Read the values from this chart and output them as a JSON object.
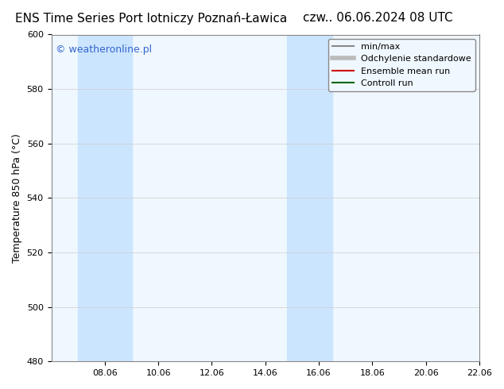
{
  "title_left": "ENS Time Series Port lotniczy Poznań-Ławica",
  "title_right": "czw.. 06.06.2024 08 UTC",
  "ylabel": "Temperature 850 hPa (°C)",
  "watermark": "© weatheronline.pl",
  "ylim": [
    480,
    600
  ],
  "yticks": [
    480,
    500,
    520,
    540,
    560,
    580,
    600
  ],
  "xlim_start": "2024-06-06",
  "xlim_end": "2024-06-22",
  "xtick_labels": [
    "08.06",
    "10.06",
    "12.06",
    "14.06",
    "16.06",
    "18.06",
    "20.06",
    "22.06"
  ],
  "shaded_regions": [
    {
      "xmin": 7,
      "xmax": 9,
      "color": "#cce5ff"
    },
    {
      "xmin": 14.8,
      "xmax": 16.5,
      "color": "#cce5ff"
    }
  ],
  "legend_entries": [
    {
      "label": "min/max",
      "color": "#888888",
      "lw": 1.5,
      "style": "solid"
    },
    {
      "label": "Odchylenie standardowe",
      "color": "#bbbbbb",
      "lw": 4,
      "style": "solid"
    },
    {
      "label": "Ensemble mean run",
      "color": "#cc0000",
      "lw": 1.5,
      "style": "solid"
    },
    {
      "label": "Controll run",
      "color": "#006600",
      "lw": 1.5,
      "style": "solid"
    }
  ],
  "plot_bg_color": "#f0f8ff",
  "fig_bg_color": "#ffffff",
  "watermark_color": "#3366cc",
  "title_fontsize": 11,
  "axis_label_fontsize": 9,
  "tick_fontsize": 8,
  "legend_fontsize": 8
}
